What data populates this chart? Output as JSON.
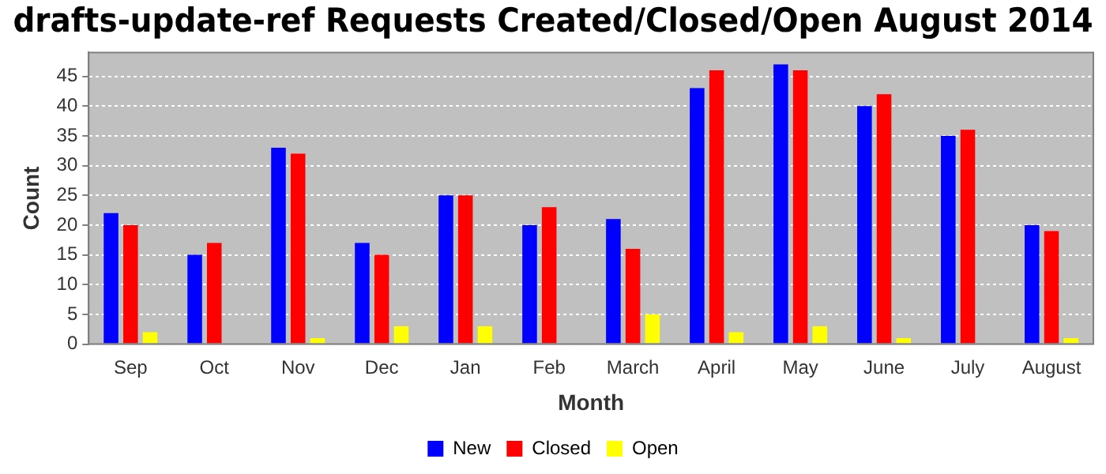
{
  "chart_data": {
    "type": "bar",
    "title": "drafts-update-ref Requests Created/Closed/Open August 2014",
    "xlabel": "Month",
    "ylabel": "Count",
    "categories": [
      "Sep",
      "Oct",
      "Nov",
      "Dec",
      "Jan",
      "Feb",
      "March",
      "April",
      "May",
      "June",
      "July",
      "August"
    ],
    "series": [
      {
        "name": "New",
        "color": "#0000ff",
        "values": [
          22,
          15,
          33,
          17,
          25,
          20,
          21,
          43,
          47,
          40,
          35,
          20
        ]
      },
      {
        "name": "Closed",
        "color": "#ff0000",
        "values": [
          20,
          17,
          32,
          15,
          25,
          23,
          16,
          46,
          46,
          42,
          36,
          19
        ]
      },
      {
        "name": "Open",
        "color": "#ffff00",
        "values": [
          2,
          0,
          1,
          3,
          3,
          0,
          5,
          2,
          3,
          1,
          0,
          1
        ]
      }
    ],
    "ylim": [
      0,
      49
    ],
    "yticks": [
      0,
      5,
      10,
      15,
      20,
      25,
      30,
      35,
      40,
      45
    ],
    "grid": "y",
    "legend": "bottom"
  }
}
